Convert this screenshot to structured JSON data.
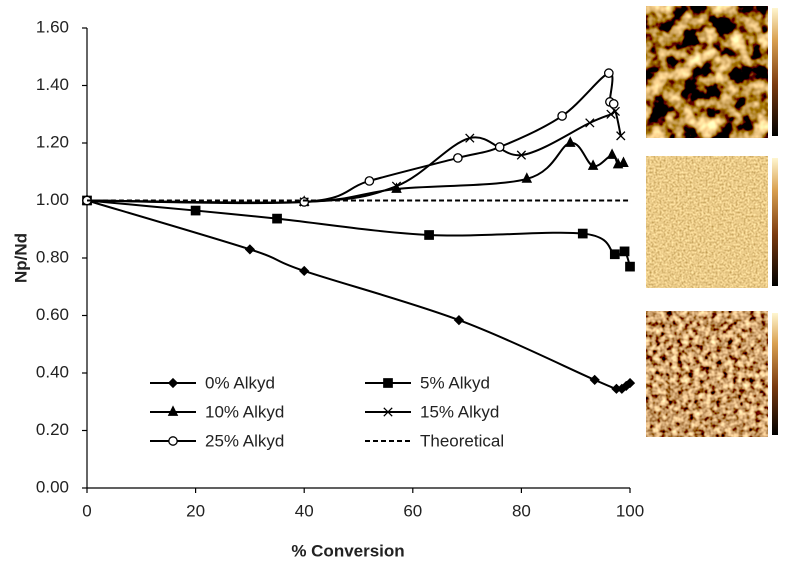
{
  "chart_data": {
    "type": "line",
    "x_label": "% Conversion",
    "y_label": "Np/Nd",
    "xlim": [
      0,
      100
    ],
    "xticks": [
      0,
      20,
      40,
      60,
      80,
      100
    ],
    "ylim": [
      0,
      1.6
    ],
    "yticks": [
      {
        "value": 0,
        "label": "0.00"
      },
      {
        "value": 0.2,
        "label": "0.20"
      },
      {
        "value": 0.4,
        "label": "0.40"
      },
      {
        "value": 0.6,
        "label": "0.60"
      },
      {
        "value": 0.8,
        "label": "0.80"
      },
      {
        "value": 1.0,
        "label": "1.00"
      },
      {
        "value": 1.2,
        "label": "1.20"
      },
      {
        "value": 1.4,
        "label": "1.40"
      },
      {
        "value": 1.6,
        "label": "1.60"
      }
    ],
    "series": [
      {
        "name": "0% Alkyd",
        "color": "#000000",
        "marker": "diamond",
        "line_style": "solid",
        "x": [
          0,
          30,
          40,
          68.5,
          93.5,
          97.5,
          98.5,
          99.3,
          100
        ],
        "values": [
          1.0,
          0.83,
          0.755,
          0.584,
          0.376,
          0.345,
          0.345,
          0.355,
          0.365
        ]
      },
      {
        "name": "5% Alkyd",
        "color": "#000000",
        "marker": "square",
        "line_style": "solid",
        "x": [
          0,
          20,
          35,
          63,
          91.3,
          97.2,
          99,
          100
        ],
        "values": [
          1.0,
          0.965,
          0.937,
          0.88,
          0.885,
          0.813,
          0.823,
          0.77
        ]
      },
      {
        "name": "10% Alkyd",
        "color": "#000000",
        "marker": "triangle",
        "line_style": "solid",
        "x": [
          0,
          40,
          57,
          81,
          89,
          93.2,
          96.7,
          97.8,
          98.8
        ],
        "values": [
          1.0,
          0.995,
          1.04,
          1.075,
          1.2,
          1.12,
          1.158,
          1.125,
          1.13
        ]
      },
      {
        "name": "15% Alkyd",
        "color": "#000000",
        "marker": "x",
        "line_style": "solid",
        "x": [
          0,
          40,
          57,
          70.5,
          80,
          92.6,
          96.5,
          97.3,
          98.3
        ],
        "values": [
          1.0,
          0.995,
          1.05,
          1.217,
          1.158,
          1.27,
          1.3,
          1.31,
          1.225
        ]
      },
      {
        "name": "25% Alkyd",
        "color": "#000000",
        "marker": "circle",
        "line_style": "solid",
        "x": [
          0,
          40,
          52,
          68.3,
          76,
          87.5,
          96.1,
          96.3,
          97
        ],
        "values": [
          1.0,
          0.995,
          1.068,
          1.148,
          1.186,
          1.294,
          1.443,
          1.343,
          1.336
        ]
      },
      {
        "name": "Theoretical",
        "color": "#000000",
        "marker": "none",
        "line_style": "dashed",
        "x": [
          0,
          100
        ],
        "values": [
          1.0,
          1.0
        ]
      }
    ]
  }
}
